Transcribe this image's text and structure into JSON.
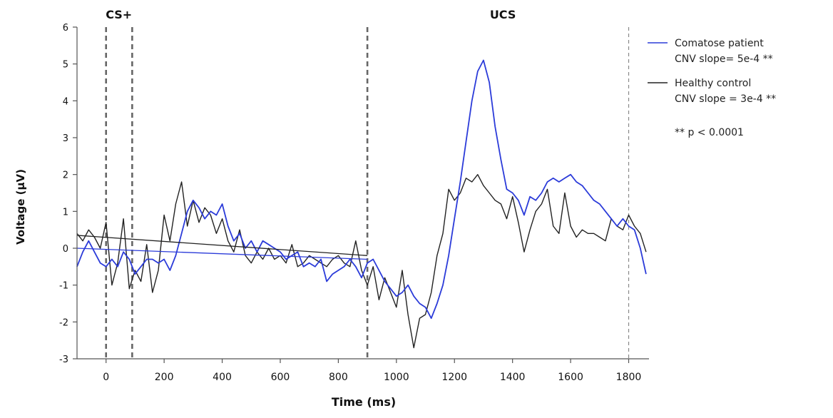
{
  "chart_data": {
    "type": "line",
    "xlabel": "Time (ms)",
    "ylabel": "Voltage (µV)",
    "xlim": [
      -100,
      1870
    ],
    "ylim": [
      -3,
      6
    ],
    "xticks": [
      0,
      200,
      400,
      600,
      800,
      1000,
      1200,
      1400,
      1600,
      1800
    ],
    "yticks": [
      -3,
      -2,
      -1,
      0,
      1,
      2,
      3,
      4,
      5,
      6
    ],
    "event_markers": [
      {
        "x": 0,
        "label": "CS+",
        "style": "dashed",
        "weight": "bold"
      },
      {
        "x": 90,
        "label": "",
        "style": "dashed",
        "weight": "bold"
      },
      {
        "x": 900,
        "label": "UCS",
        "style": "dashed",
        "weight": "bold"
      },
      {
        "x": 1800,
        "label": "",
        "style": "dashed",
        "weight": "thin"
      }
    ],
    "legend": {
      "placement": "top-right",
      "entries": [
        {
          "line1": "Comatose patient",
          "line2": "CNV slope= 5e-4 **",
          "color": "#2b3bd9"
        },
        {
          "line1": "Healthy control",
          "line2": "CNV slope = 3e-4 **",
          "color": "#222222"
        }
      ],
      "note": "** p < 0.0001"
    },
    "series": [
      {
        "color": "#2b3bd9",
        "x": [
          -100,
          -80,
          -60,
          -40,
          -20,
          0,
          20,
          40,
          60,
          80,
          100,
          120,
          140,
          160,
          180,
          200,
          220,
          240,
          260,
          280,
          300,
          320,
          340,
          360,
          380,
          400,
          420,
          440,
          460,
          480,
          500,
          520,
          540,
          560,
          580,
          600,
          620,
          640,
          660,
          680,
          700,
          720,
          740,
          760,
          780,
          800,
          820,
          840,
          860,
          880,
          900,
          920,
          940,
          960,
          980,
          1000,
          1020,
          1040,
          1060,
          1080,
          1100,
          1120,
          1140,
          1160,
          1180,
          1200,
          1220,
          1240,
          1260,
          1280,
          1300,
          1320,
          1340,
          1360,
          1380,
          1400,
          1420,
          1440,
          1460,
          1480,
          1500,
          1520,
          1540,
          1560,
          1580,
          1600,
          1620,
          1640,
          1660,
          1680,
          1700,
          1720,
          1740,
          1760,
          1780,
          1800,
          1820,
          1840,
          1860
        ],
        "y": [
          -0.5,
          -0.1,
          0.2,
          -0.1,
          -0.4,
          -0.5,
          -0.3,
          -0.5,
          -0.1,
          -0.3,
          -0.7,
          -0.5,
          -0.3,
          -0.3,
          -0.4,
          -0.3,
          -0.6,
          -0.2,
          0.4,
          1.0,
          1.3,
          1.1,
          0.8,
          1.0,
          0.9,
          1.2,
          0.6,
          0.2,
          0.4,
          0.0,
          0.2,
          -0.1,
          0.2,
          0.1,
          0.0,
          -0.1,
          -0.3,
          -0.2,
          -0.1,
          -0.5,
          -0.4,
          -0.5,
          -0.3,
          -0.9,
          -0.7,
          -0.6,
          -0.5,
          -0.3,
          -0.5,
          -0.8,
          -0.4,
          -0.3,
          -0.6,
          -0.9,
          -1.1,
          -1.3,
          -1.2,
          -1.0,
          -1.3,
          -1.5,
          -1.6,
          -1.9,
          -1.5,
          -1.0,
          -0.2,
          0.8,
          1.8,
          2.9,
          4.0,
          4.8,
          5.1,
          4.5,
          3.3,
          2.4,
          1.6,
          1.5,
          1.3,
          0.9,
          1.4,
          1.3,
          1.5,
          1.8,
          1.9,
          1.8,
          1.9,
          2.0,
          1.8,
          1.7,
          1.5,
          1.3,
          1.2,
          1.0,
          0.8,
          0.6,
          0.8,
          0.6,
          0.5,
          0.0,
          -0.7
        ]
      },
      {
        "color": "#222222",
        "x": [
          -100,
          -80,
          -60,
          -40,
          -20,
          0,
          20,
          40,
          60,
          80,
          100,
          120,
          140,
          160,
          180,
          200,
          220,
          240,
          260,
          280,
          300,
          320,
          340,
          360,
          380,
          400,
          420,
          440,
          460,
          480,
          500,
          520,
          540,
          560,
          580,
          600,
          620,
          640,
          660,
          680,
          700,
          720,
          740,
          760,
          780,
          800,
          820,
          840,
          860,
          880,
          900,
          920,
          940,
          960,
          980,
          1000,
          1020,
          1040,
          1060,
          1080,
          1100,
          1120,
          1140,
          1160,
          1180,
          1200,
          1220,
          1240,
          1260,
          1280,
          1300,
          1320,
          1340,
          1360,
          1380,
          1400,
          1420,
          1440,
          1460,
          1480,
          1500,
          1520,
          1540,
          1560,
          1580,
          1600,
          1620,
          1640,
          1660,
          1680,
          1700,
          1720,
          1740,
          1760,
          1780,
          1800,
          1820,
          1840,
          1860
        ],
        "y": [
          0.4,
          0.2,
          0.5,
          0.3,
          0.0,
          0.7,
          -1.0,
          -0.4,
          0.8,
          -1.1,
          -0.6,
          -0.9,
          0.1,
          -1.2,
          -0.6,
          0.9,
          0.2,
          1.2,
          1.8,
          0.6,
          1.3,
          0.7,
          1.1,
          0.9,
          0.4,
          0.8,
          0.2,
          -0.1,
          0.5,
          -0.2,
          -0.4,
          -0.1,
          -0.3,
          0.0,
          -0.3,
          -0.2,
          -0.4,
          0.1,
          -0.5,
          -0.4,
          -0.2,
          -0.3,
          -0.4,
          -0.5,
          -0.3,
          -0.2,
          -0.4,
          -0.5,
          0.2,
          -0.6,
          -1.0,
          -0.5,
          -1.4,
          -0.8,
          -1.2,
          -1.6,
          -0.6,
          -1.8,
          -2.7,
          -1.9,
          -1.8,
          -1.2,
          -0.2,
          0.4,
          1.6,
          1.3,
          1.5,
          1.9,
          1.8,
          2.0,
          1.7,
          1.5,
          1.3,
          1.2,
          0.8,
          1.4,
          0.7,
          -0.1,
          0.5,
          1.0,
          1.2,
          1.6,
          0.6,
          0.4,
          1.5,
          0.6,
          0.3,
          0.5,
          0.4,
          0.4,
          0.3,
          0.2,
          0.8,
          0.6,
          0.5,
          0.9,
          0.6,
          0.4,
          -0.1
        ]
      }
    ],
    "trend_lines": [
      {
        "color": "#2b3bd9",
        "x": [
          -100,
          900
        ],
        "y": [
          0.0,
          -0.3
        ]
      },
      {
        "color": "#222222",
        "x": [
          -100,
          900
        ],
        "y": [
          0.35,
          -0.2
        ]
      }
    ]
  }
}
